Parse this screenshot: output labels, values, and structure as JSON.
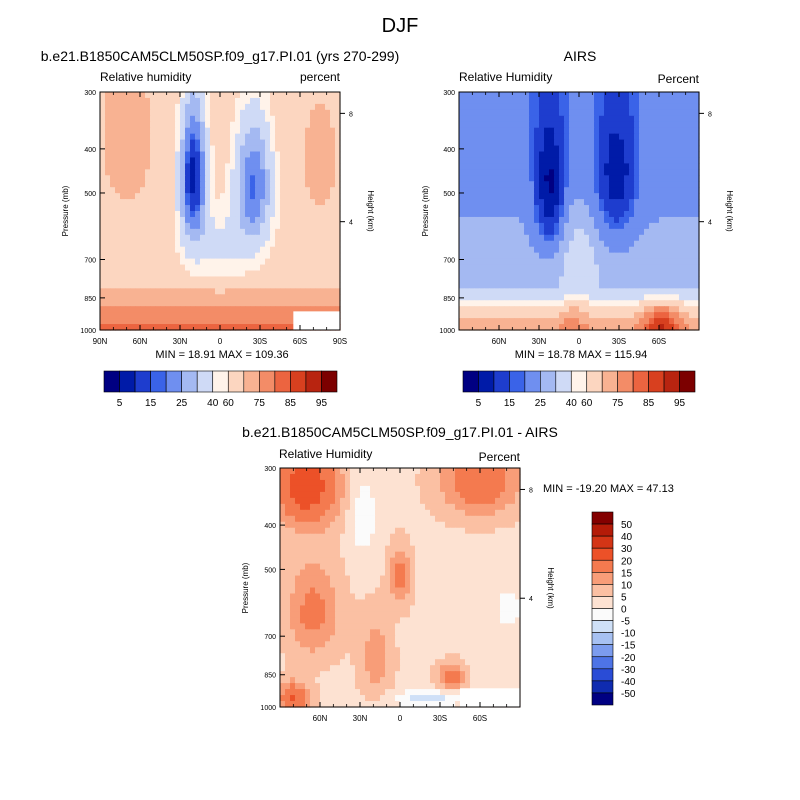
{
  "figure_title": "DJF",
  "chart_data": [
    {
      "type": "heatmap",
      "panel_id": "model",
      "title": "b.e21.B1850CAM5CLM50SP.f09_g17.PI.01 (yrs 270-299)",
      "left_string": "Relative humidity",
      "right_string": "percent",
      "ylabel": "Pressure (mb)",
      "ylabel_right": "Height (km)",
      "x_ticks": [
        "90N",
        "60N",
        "30N",
        "0",
        "30S",
        "60S",
        "90S"
      ],
      "x_tick_values": [
        90,
        60,
        30,
        0,
        -30,
        -60,
        -90
      ],
      "xlim": [
        90,
        -90
      ],
      "y_ticks": [
        "300",
        "400",
        "500",
        "700",
        "850",
        "1000"
      ],
      "y_tick_values": [
        300,
        400,
        500,
        700,
        850,
        1000
      ],
      "ylim": [
        1000,
        300
      ],
      "height_ticks": [
        "8",
        "4"
      ],
      "height_values_km": [
        8,
        4
      ],
      "stats": "MIN =  18.91   MAX = 109.36",
      "min": 18.91,
      "max": 109.36,
      "palette": "positive",
      "masked_region": {
        "lat_from": -55,
        "lat_to": -90,
        "p_from": 910,
        "p_to": 1000
      }
    },
    {
      "type": "heatmap",
      "panel_id": "airs",
      "title": "AIRS",
      "left_string": "Relative Humidity",
      "right_string": "Percent",
      "ylabel": "Pressure (mb)",
      "ylabel_right": "Height (km)",
      "x_ticks": [
        "60N",
        "30N",
        "0",
        "30S",
        "60S"
      ],
      "x_tick_values": [
        60,
        30,
        0,
        -30,
        -60
      ],
      "xlim": [
        90,
        -90
      ],
      "y_ticks": [
        "300",
        "400",
        "500",
        "700",
        "850",
        "1000"
      ],
      "y_tick_values": [
        300,
        400,
        500,
        700,
        850,
        1000
      ],
      "ylim": [
        1000,
        300
      ],
      "height_ticks": [
        "8",
        "4"
      ],
      "height_values_km": [
        8,
        4
      ],
      "stats": "MIN =  18.78   MAX = 115.94",
      "min": 18.78,
      "max": 115.94,
      "palette": "positive"
    },
    {
      "type": "heatmap",
      "panel_id": "diff",
      "title": "b.e21.B1850CAM5CLM50SP.f09_g17.PI.01 - AIRS",
      "left_string": "Relative Humidity",
      "right_string": "Percent",
      "ylabel": "Pressure (mb)",
      "ylabel_right": "Height (km)",
      "x_ticks": [
        "60N",
        "30N",
        "0",
        "30S",
        "60S"
      ],
      "x_tick_values": [
        60,
        30,
        0,
        -30,
        -60
      ],
      "xlim": [
        90,
        -90
      ],
      "y_ticks": [
        "300",
        "400",
        "500",
        "700",
        "850",
        "1000"
      ],
      "y_tick_values": [
        300,
        400,
        500,
        700,
        850,
        1000
      ],
      "ylim": [
        1000,
        300
      ],
      "height_ticks": [
        "8",
        "4"
      ],
      "height_values_km": [
        8,
        4
      ],
      "stats": "MIN = -19.20   MAX =  47.13",
      "min": -19.2,
      "max": 47.13,
      "palette": "difference",
      "masked_region": {
        "lat_from": -45,
        "lat_to": -90,
        "p_from": 910,
        "p_to": 1000
      }
    }
  ],
  "colorbars": {
    "positive": {
      "orientation": "horizontal",
      "labels": [
        "5",
        "15",
        "25",
        "40",
        "60",
        "75",
        "85",
        "95"
      ],
      "colors": [
        "#000082",
        "#001ba8",
        "#1e3dce",
        "#3a63e8",
        "#6f8ff0",
        "#a4b9f2",
        "#cfdaf6",
        "#fff3ea",
        "#fcd6c0",
        "#f8b292",
        "#f38c67",
        "#ec6440",
        "#d8401f",
        "#b82410",
        "#7c0000"
      ]
    },
    "difference": {
      "orientation": "vertical",
      "labels": [
        "50",
        "40",
        "30",
        "20",
        "15",
        "10",
        "5",
        "0",
        "-5",
        "-10",
        "-15",
        "-20",
        "-30",
        "-40",
        "-50"
      ],
      "colors": [
        "#830000",
        "#b41b08",
        "#d43516",
        "#ec5128",
        "#f47a4f",
        "#f89d78",
        "#fbc0a3",
        "#fde2d2",
        "#fbfbfb",
        "#cfe0f7",
        "#a7c1f2",
        "#7c9cee",
        "#4e74e6",
        "#2a4cd6",
        "#0f2bb0",
        "#000082"
      ]
    }
  }
}
